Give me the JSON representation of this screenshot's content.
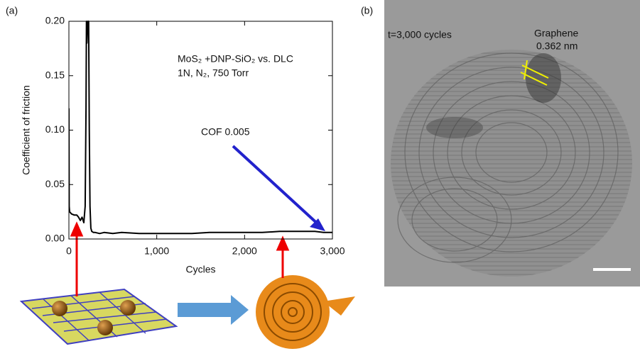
{
  "panel_labels": {
    "a": "(a)",
    "b": "(b)"
  },
  "chart_data": {
    "type": "line",
    "y_label": "Coefficient of friction",
    "x_label": "Cycles",
    "annotations": [
      "MoS₂ +DNP-SiO₂ vs. DLC",
      "1N, N₂, 750 Torr",
      "COF 0.005"
    ],
    "x": [
      0,
      3,
      8,
      30,
      60,
      90,
      110,
      130,
      150,
      170,
      185,
      195,
      200,
      205,
      215,
      225,
      232,
      240,
      250,
      260,
      280,
      300,
      350,
      400,
      500,
      600,
      800,
      1000,
      1200,
      1400,
      1600,
      1800,
      2000,
      2200,
      2400,
      2600,
      2800,
      2900,
      3000
    ],
    "series": [
      {
        "color": "#000000",
        "values": [
          0.12,
          0.03,
          0.025,
          0.023,
          0.022,
          0.022,
          0.02,
          0.017,
          0.02,
          0.015,
          0.03,
          0.12,
          0.2,
          0.18,
          0.2,
          0.2,
          0.1,
          0.03,
          0.01,
          0.007,
          0.006,
          0.006,
          0.005,
          0.006,
          0.005,
          0.006,
          0.005,
          0.005,
          0.005,
          0.005,
          0.006,
          0.006,
          0.006,
          0.006,
          0.007,
          0.007,
          0.007,
          0.006,
          0.006
        ]
      }
    ],
    "xlim": [
      0,
      3000
    ],
    "ylim": [
      0,
      0.2
    ],
    "xticks": [
      0,
      {
        "value": 1000,
        "label": "1,000"
      },
      {
        "value": 2000,
        "label": "2,000"
      },
      {
        "value": 3000,
        "label": "3,000"
      }
    ],
    "yticks": [
      {
        "value": 0,
        "label": "0.00"
      },
      {
        "value": 0.05,
        "label": "0.05"
      },
      {
        "value": 0.1,
        "label": "0.10"
      },
      {
        "value": 0.15,
        "label": "0.15"
      },
      {
        "value": 0.2,
        "label": "0.20"
      }
    ]
  },
  "image": {
    "caption": "t=3,000 cycles",
    "label": "Graphene",
    "spacing": "0.362 nm"
  }
}
